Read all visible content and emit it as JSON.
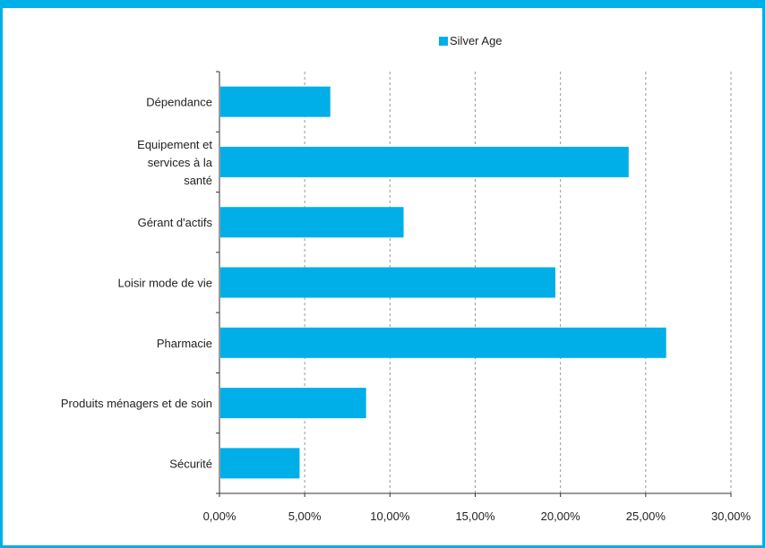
{
  "chart_data": {
    "type": "bar",
    "orientation": "horizontal",
    "categories": [
      [
        "Dépendance"
      ],
      [
        "Equipement et",
        "services à la",
        "santé"
      ],
      [
        "Gérant d'actifs"
      ],
      [
        "Loisir mode de vie"
      ],
      [
        "Pharmacie"
      ],
      [
        "Produits ménagers et de soin"
      ],
      [
        "Sécurité"
      ]
    ],
    "series": [
      {
        "name": "Silver Age",
        "values": [
          0.065,
          0.24,
          0.108,
          0.197,
          0.262,
          0.086,
          0.047
        ]
      }
    ],
    "xlim": [
      0,
      0.3
    ],
    "xticks": [
      0,
      0.05,
      0.1,
      0.15,
      0.2,
      0.25,
      0.3
    ],
    "tick_labels": [
      "0,00%",
      "5,00%",
      "10,00%",
      "15,00%",
      "20,00%",
      "25,00%",
      "30,00%"
    ],
    "grid": "vertical dashed",
    "legend_position": "top-center",
    "colors": {
      "bar": "#00aee8",
      "frame": "#00aee8",
      "grid": "#999999",
      "axis": "#333333"
    }
  }
}
